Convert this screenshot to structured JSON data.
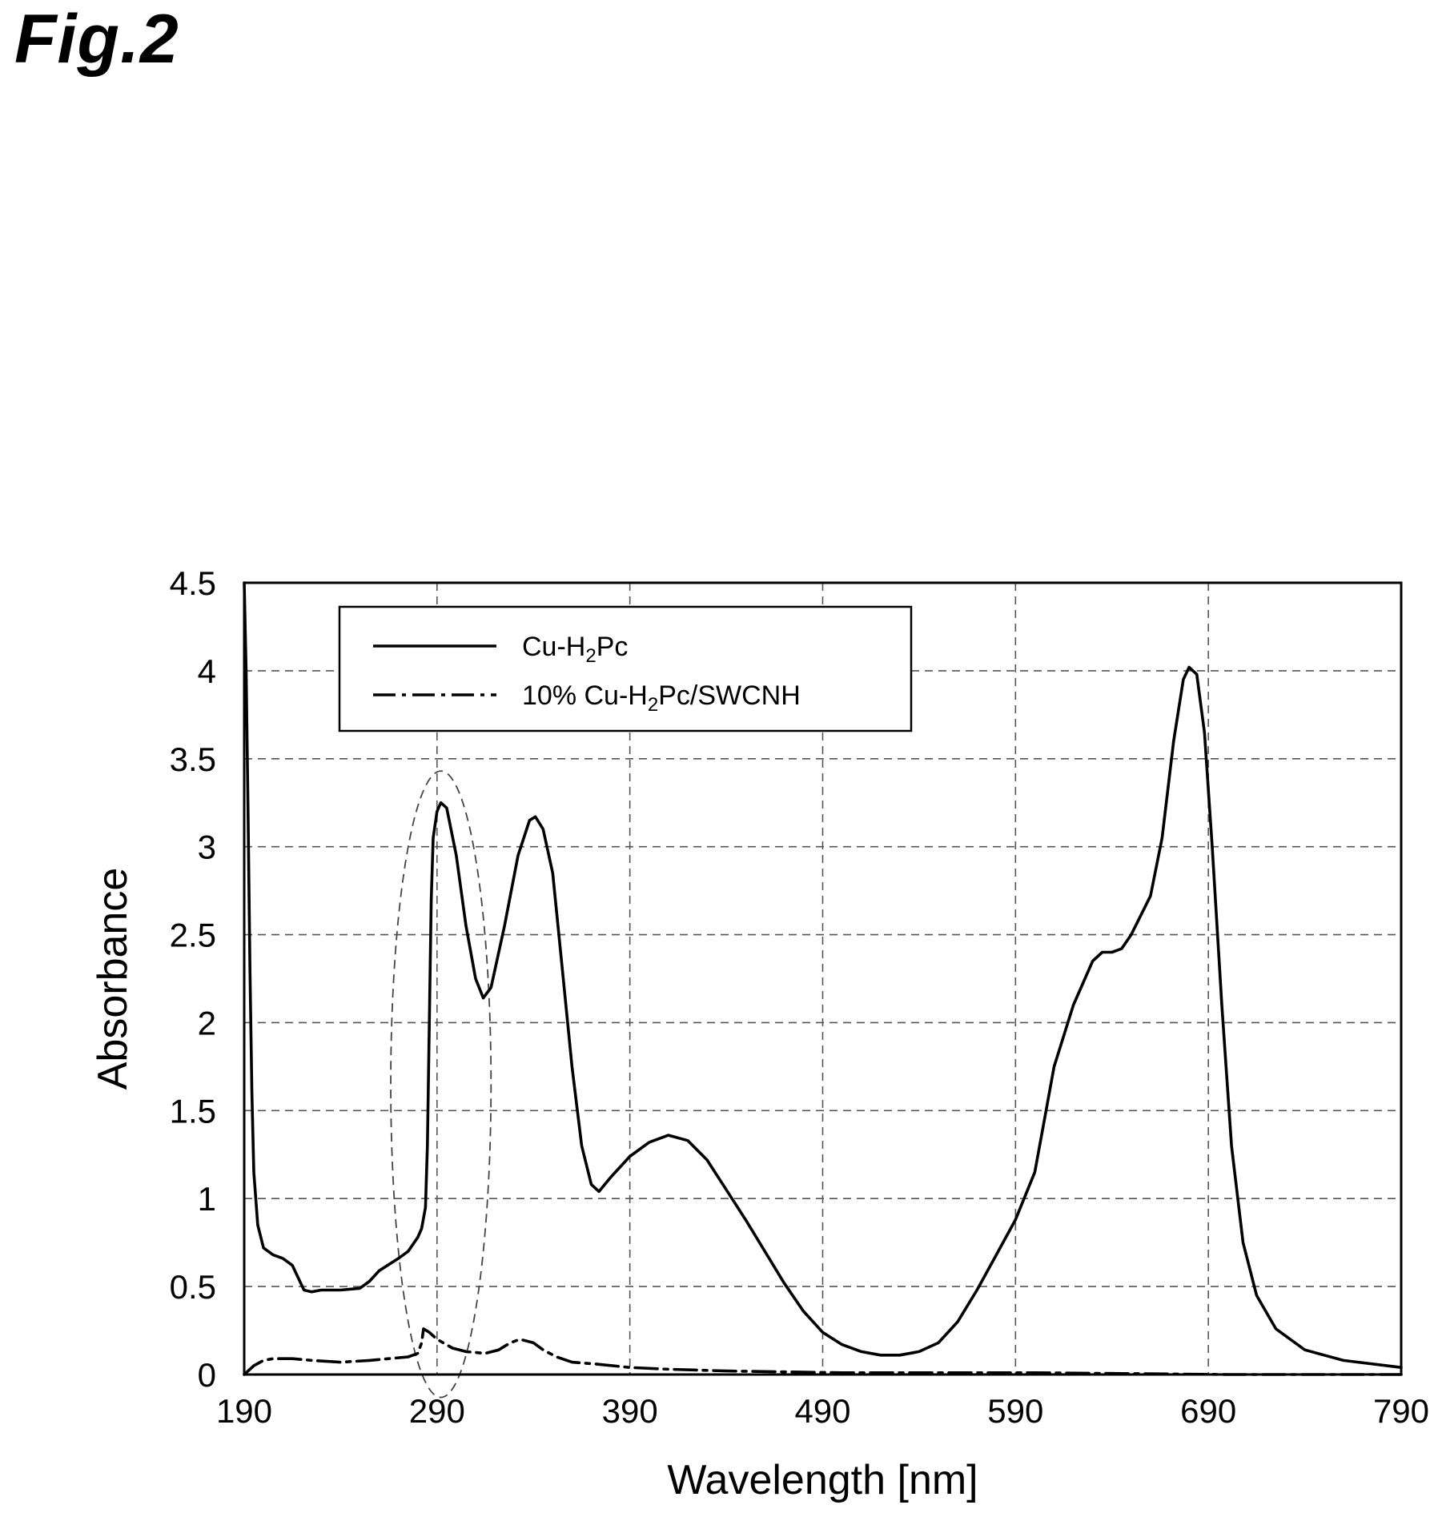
{
  "figure": {
    "label": "Fig.2"
  },
  "chart_data": {
    "type": "line",
    "xlabel": "Wavelength [nm]",
    "ylabel": "Absorbance",
    "xlim": [
      190,
      790
    ],
    "ylim": [
      0,
      4.5
    ],
    "x_ticks": [
      190,
      290,
      390,
      490,
      590,
      690,
      790
    ],
    "y_ticks": [
      0,
      0.5,
      1,
      1.5,
      2,
      2.5,
      3,
      3.5,
      4,
      4.5
    ],
    "y_tick_labels": [
      "0",
      "0.5",
      "1",
      "1.5",
      "2",
      "2.5",
      "3",
      "3.5",
      "4",
      "4.5"
    ],
    "grid": true,
    "legend_position": "top-left",
    "series": [
      {
        "name": "Cu-H2Pc",
        "legend_main": "Cu-H",
        "legend_sub": "2",
        "legend_tail": "Pc",
        "line_style": "solid",
        "color": "#000000",
        "points": [
          [
            190,
            4.5
          ],
          [
            191,
            4.0
          ],
          [
            192,
            3.2
          ],
          [
            193,
            2.3
          ],
          [
            194,
            1.6
          ],
          [
            195,
            1.15
          ],
          [
            197,
            0.85
          ],
          [
            200,
            0.72
          ],
          [
            205,
            0.68
          ],
          [
            210,
            0.66
          ],
          [
            215,
            0.62
          ],
          [
            218,
            0.55
          ],
          [
            221,
            0.48
          ],
          [
            225,
            0.47
          ],
          [
            230,
            0.48
          ],
          [
            240,
            0.48
          ],
          [
            250,
            0.49
          ],
          [
            255,
            0.53
          ],
          [
            260,
            0.59
          ],
          [
            270,
            0.66
          ],
          [
            275,
            0.7
          ],
          [
            280,
            0.78
          ],
          [
            282,
            0.83
          ],
          [
            284,
            0.95
          ],
          [
            285,
            1.3
          ],
          [
            286,
            2.0
          ],
          [
            287,
            2.7
          ],
          [
            288,
            3.05
          ],
          [
            290,
            3.2
          ],
          [
            292,
            3.25
          ],
          [
            295,
            3.22
          ],
          [
            300,
            2.95
          ],
          [
            305,
            2.55
          ],
          [
            310,
            2.25
          ],
          [
            314,
            2.14
          ],
          [
            318,
            2.2
          ],
          [
            325,
            2.55
          ],
          [
            332,
            2.95
          ],
          [
            338,
            3.15
          ],
          [
            341,
            3.17
          ],
          [
            345,
            3.1
          ],
          [
            350,
            2.85
          ],
          [
            355,
            2.3
          ],
          [
            360,
            1.75
          ],
          [
            365,
            1.3
          ],
          [
            370,
            1.08
          ],
          [
            374,
            1.04
          ],
          [
            380,
            1.12
          ],
          [
            390,
            1.24
          ],
          [
            400,
            1.32
          ],
          [
            410,
            1.36
          ],
          [
            420,
            1.33
          ],
          [
            430,
            1.22
          ],
          [
            440,
            1.05
          ],
          [
            450,
            0.88
          ],
          [
            460,
            0.7
          ],
          [
            470,
            0.52
          ],
          [
            480,
            0.36
          ],
          [
            490,
            0.24
          ],
          [
            500,
            0.17
          ],
          [
            510,
            0.13
          ],
          [
            520,
            0.11
          ],
          [
            530,
            0.11
          ],
          [
            540,
            0.13
          ],
          [
            550,
            0.18
          ],
          [
            560,
            0.3
          ],
          [
            570,
            0.48
          ],
          [
            580,
            0.68
          ],
          [
            590,
            0.88
          ],
          [
            600,
            1.15
          ],
          [
            605,
            1.45
          ],
          [
            610,
            1.75
          ],
          [
            620,
            2.1
          ],
          [
            630,
            2.35
          ],
          [
            635,
            2.4
          ],
          [
            640,
            2.4
          ],
          [
            645,
            2.42
          ],
          [
            650,
            2.5
          ],
          [
            660,
            2.72
          ],
          [
            666,
            3.05
          ],
          [
            672,
            3.6
          ],
          [
            677,
            3.95
          ],
          [
            680,
            4.02
          ],
          [
            684,
            3.98
          ],
          [
            688,
            3.65
          ],
          [
            692,
            3.0
          ],
          [
            697,
            2.1
          ],
          [
            702,
            1.3
          ],
          [
            708,
            0.75
          ],
          [
            715,
            0.45
          ],
          [
            725,
            0.26
          ],
          [
            740,
            0.14
          ],
          [
            760,
            0.08
          ],
          [
            790,
            0.04
          ]
        ]
      },
      {
        "name": "10% Cu-H2Pc/SWCNH",
        "legend_main": "10% Cu-H",
        "legend_sub": "2",
        "legend_tail": "Pc/SWCNH",
        "line_style": "dash-dot",
        "color": "#000000",
        "points": [
          [
            190,
            0.0
          ],
          [
            195,
            0.05
          ],
          [
            200,
            0.08
          ],
          [
            205,
            0.09
          ],
          [
            215,
            0.09
          ],
          [
            225,
            0.08
          ],
          [
            240,
            0.07
          ],
          [
            255,
            0.08
          ],
          [
            265,
            0.09
          ],
          [
            275,
            0.1
          ],
          [
            280,
            0.12
          ],
          [
            282,
            0.18
          ],
          [
            283,
            0.26
          ],
          [
            286,
            0.24
          ],
          [
            290,
            0.2
          ],
          [
            298,
            0.15
          ],
          [
            305,
            0.13
          ],
          [
            315,
            0.12
          ],
          [
            322,
            0.14
          ],
          [
            328,
            0.18
          ],
          [
            333,
            0.2
          ],
          [
            340,
            0.18
          ],
          [
            345,
            0.14
          ],
          [
            352,
            0.1
          ],
          [
            360,
            0.07
          ],
          [
            372,
            0.06
          ],
          [
            390,
            0.04
          ],
          [
            410,
            0.03
          ],
          [
            440,
            0.02
          ],
          [
            470,
            0.015
          ],
          [
            500,
            0.01
          ],
          [
            550,
            0.01
          ],
          [
            600,
            0.01
          ],
          [
            650,
            0.005
          ],
          [
            700,
            0.0
          ],
          [
            750,
            0.0
          ],
          [
            790,
            0.0
          ]
        ]
      }
    ],
    "annotations": [
      {
        "type": "dashed-ellipse",
        "center_x": 292,
        "center_y": 1.65,
        "radius_x": 26,
        "radius_y": 1.78
      }
    ]
  }
}
